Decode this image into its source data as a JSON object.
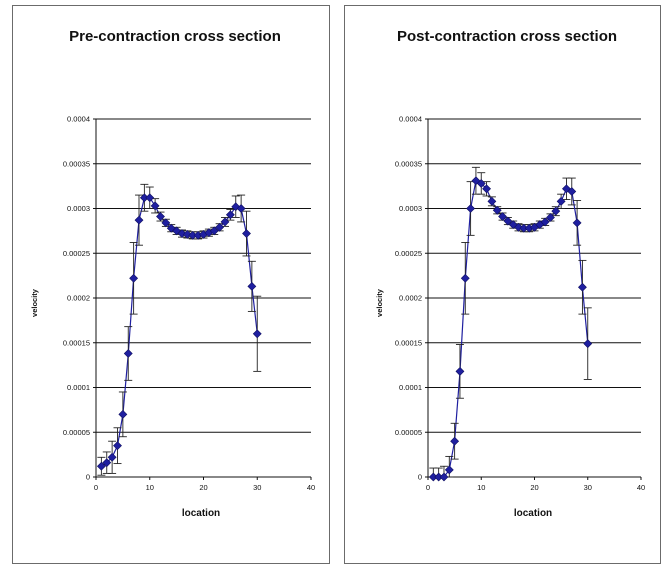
{
  "chart_data": [
    {
      "type": "scatter",
      "title": "Pre-contraction cross section",
      "xlabel": "location",
      "ylabel": "velocity",
      "xlim": [
        0,
        40
      ],
      "ylim": [
        0,
        0.0004
      ],
      "x_ticks": [
        "0",
        "10",
        "20",
        "30",
        "40"
      ],
      "y_ticks": [
        "0",
        "0.00005",
        "0.0001",
        "0.00015",
        "0.0002",
        "0.00025",
        "0.0003",
        "0.00035",
        "0.0004"
      ],
      "grid": "horizontal",
      "legend": "none",
      "marker_color": "#1f1fa0",
      "series": [
        {
          "x": [
            1,
            2,
            3,
            4,
            5,
            6,
            7,
            8,
            9,
            10,
            11,
            12,
            13,
            14,
            15,
            16,
            17,
            18,
            19,
            20,
            21,
            22,
            23,
            24,
            25,
            26,
            27,
            28,
            29,
            30
          ],
          "y": [
            1.2e-05,
            1.6e-05,
            2.2e-05,
            3.5e-05,
            7e-05,
            0.000138,
            0.000222,
            0.000287,
            0.000312,
            0.000312,
            0.000303,
            0.000291,
            0.000284,
            0.000278,
            0.000275,
            0.000272,
            0.000271,
            0.00027,
            0.00027,
            0.000271,
            0.000273,
            0.000275,
            0.000279,
            0.000285,
            0.000293,
            0.000302,
            0.0003,
            0.000272,
            0.000213,
            0.00016
          ],
          "error": [
            1e-05,
            1.2e-05,
            1.8e-05,
            2e-05,
            2.5e-05,
            3e-05,
            4e-05,
            2.8e-05,
            1.5e-05,
            1.2e-05,
            8e-06,
            5e-06,
            4e-06,
            4e-06,
            4e-06,
            4e-06,
            4e-06,
            4e-06,
            4e-06,
            4e-06,
            4e-06,
            4e-06,
            4e-06,
            5e-06,
            6e-06,
            1.2e-05,
            1.5e-05,
            2.5e-05,
            2.8e-05,
            4.2e-05
          ]
        }
      ]
    },
    {
      "type": "scatter",
      "title": "Post-contraction cross section",
      "xlabel": "location",
      "ylabel": "velocity",
      "xlim": [
        0,
        40
      ],
      "ylim": [
        0,
        0.0004
      ],
      "x_ticks": [
        "0",
        "10",
        "20",
        "30",
        "40"
      ],
      "y_ticks": [
        "0",
        "0.00005",
        "0.0001",
        "0.00015",
        "0.0002",
        "0.00025",
        "0.0003",
        "0.00035",
        "0.0004"
      ],
      "grid": "horizontal",
      "legend": "none",
      "marker_color": "#1f1fa0",
      "series": [
        {
          "x": [
            1,
            2,
            3,
            4,
            5,
            6,
            7,
            8,
            9,
            10,
            11,
            12,
            13,
            14,
            15,
            16,
            17,
            18,
            19,
            20,
            21,
            22,
            23,
            24,
            25,
            26,
            27,
            28,
            29,
            30
          ],
          "y": [
            0.0,
            0.0,
            0.0,
            8e-06,
            4e-05,
            0.000118,
            0.000222,
            0.0003,
            0.000331,
            0.000328,
            0.000322,
            0.000308,
            0.000298,
            0.000291,
            0.000286,
            0.000282,
            0.000279,
            0.000278,
            0.000278,
            0.000279,
            0.000282,
            0.000285,
            0.00029,
            0.000297,
            0.000308,
            0.000322,
            0.000319,
            0.000284,
            0.000212,
            0.000149
          ],
          "error": [
            1e-05,
            1e-05,
            1.2e-05,
            1.5e-05,
            2e-05,
            3e-05,
            4e-05,
            3e-05,
            1.5e-05,
            1.2e-05,
            8e-06,
            5e-06,
            4e-06,
            4e-06,
            4e-06,
            4e-06,
            4e-06,
            4e-06,
            4e-06,
            4e-06,
            4e-06,
            4e-06,
            4e-06,
            5e-06,
            8e-06,
            1.2e-05,
            1.5e-05,
            2.5e-05,
            3e-05,
            4e-05
          ]
        }
      ]
    }
  ]
}
